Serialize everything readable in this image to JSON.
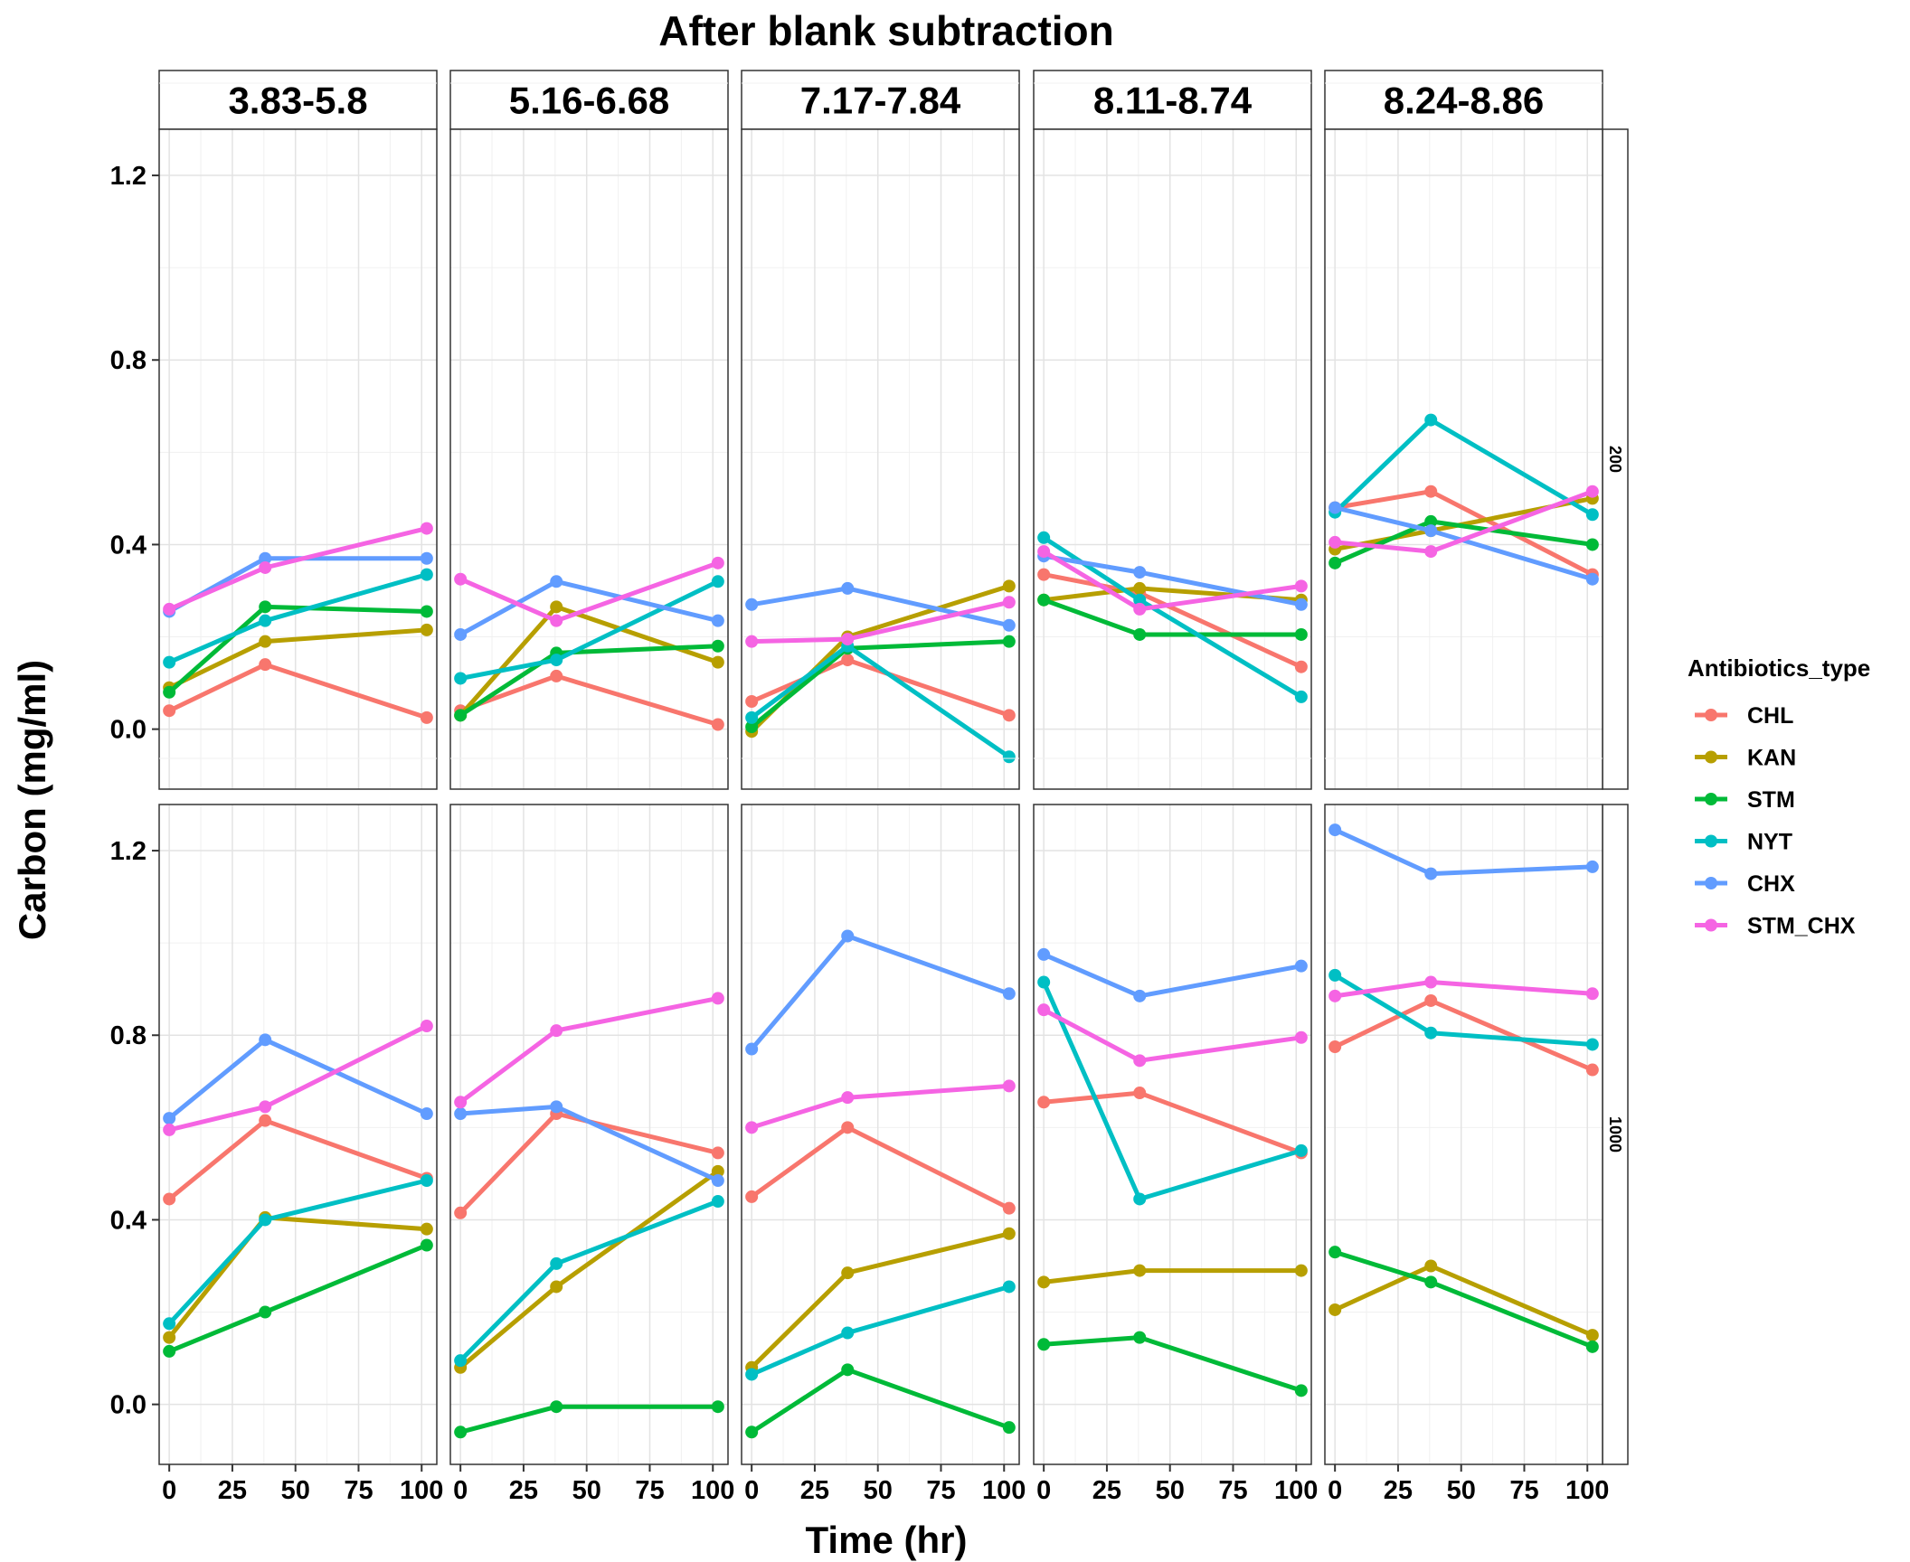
{
  "chart_data": {
    "type": "line",
    "title": "After blank subtraction",
    "xlabel": "Time (hr)",
    "ylabel": "Carbon (mg/ml)",
    "x": [
      0,
      38,
      102
    ],
    "x_ticks": [
      0,
      25,
      50,
      75,
      100
    ],
    "x_tick_labels": [
      "0",
      "25",
      "50",
      "75",
      "100"
    ],
    "xlim": [
      -4,
      106
    ],
    "ylim": [
      -0.13,
      1.3
    ],
    "y_ticks": [
      0.0,
      0.4,
      0.8,
      1.2
    ],
    "y_tick_labels": [
      "0.0",
      "0.4",
      "0.8",
      "1.2"
    ],
    "grid": true,
    "legend_title": "Antibiotics_type",
    "legend_position": "right",
    "series_names": [
      "CHL",
      "KAN",
      "STM",
      "NYT",
      "CHX",
      "STM_CHX"
    ],
    "colors": {
      "CHL": "#F8766D",
      "KAN": "#B79F00",
      "STM": "#00BA38",
      "NYT": "#00BFC4",
      "CHX": "#619CFF",
      "STM_CHX": "#F564E3"
    },
    "columns": [
      "3.83-5.8",
      "5.16-6.68",
      "7.17-7.84",
      "8.11-8.74",
      "8.24-8.86"
    ],
    "rows": [
      "200",
      "1000"
    ],
    "panels": [
      {
        "row": "200",
        "column": "3.83-5.8",
        "series": [
          {
            "name": "CHL",
            "values": [
              0.04,
              0.14,
              0.025
            ]
          },
          {
            "name": "KAN",
            "values": [
              0.09,
              0.19,
              0.215
            ]
          },
          {
            "name": "STM",
            "values": [
              0.08,
              0.265,
              0.255
            ]
          },
          {
            "name": "NYT",
            "values": [
              0.145,
              0.235,
              0.335
            ]
          },
          {
            "name": "CHX",
            "values": [
              0.255,
              0.37,
              0.37
            ]
          },
          {
            "name": "STM_CHX",
            "values": [
              0.26,
              0.35,
              0.435
            ]
          }
        ]
      },
      {
        "row": "200",
        "column": "5.16-6.68",
        "series": [
          {
            "name": "CHL",
            "values": [
              0.04,
              0.115,
              0.01
            ]
          },
          {
            "name": "KAN",
            "values": [
              0.03,
              0.265,
              0.145
            ]
          },
          {
            "name": "STM",
            "values": [
              0.03,
              0.165,
              0.18
            ]
          },
          {
            "name": "NYT",
            "values": [
              0.11,
              0.15,
              0.32
            ]
          },
          {
            "name": "CHX",
            "values": [
              0.205,
              0.32,
              0.235
            ]
          },
          {
            "name": "STM_CHX",
            "values": [
              0.325,
              0.235,
              0.36
            ]
          }
        ]
      },
      {
        "row": "200",
        "column": "7.17-7.84",
        "series": [
          {
            "name": "CHL",
            "values": [
              0.06,
              0.15,
              0.03
            ]
          },
          {
            "name": "KAN",
            "values": [
              -0.005,
              0.2,
              0.31
            ]
          },
          {
            "name": "STM",
            "values": [
              0.005,
              0.175,
              0.19
            ]
          },
          {
            "name": "NYT",
            "values": [
              0.025,
              0.18,
              -0.06
            ]
          },
          {
            "name": "CHX",
            "values": [
              0.27,
              0.305,
              0.225
            ]
          },
          {
            "name": "STM_CHX",
            "values": [
              0.19,
              0.195,
              0.275
            ]
          }
        ]
      },
      {
        "row": "200",
        "column": "8.11-8.74",
        "series": [
          {
            "name": "CHL",
            "values": [
              0.335,
              0.295,
              0.135
            ]
          },
          {
            "name": "KAN",
            "values": [
              0.28,
              0.305,
              0.28
            ]
          },
          {
            "name": "STM",
            "values": [
              0.28,
              0.205,
              0.205
            ]
          },
          {
            "name": "NYT",
            "values": [
              0.415,
              0.28,
              0.07
            ]
          },
          {
            "name": "CHX",
            "values": [
              0.375,
              0.34,
              0.27
            ]
          },
          {
            "name": "STM_CHX",
            "values": [
              0.385,
              0.26,
              0.31
            ]
          }
        ]
      },
      {
        "row": "200",
        "column": "8.24-8.86",
        "series": [
          {
            "name": "CHL",
            "values": [
              0.48,
              0.515,
              0.335
            ]
          },
          {
            "name": "KAN",
            "values": [
              0.39,
              0.43,
              0.5
            ]
          },
          {
            "name": "STM",
            "values": [
              0.36,
              0.45,
              0.4
            ]
          },
          {
            "name": "NYT",
            "values": [
              0.47,
              0.67,
              0.465
            ]
          },
          {
            "name": "CHX",
            "values": [
              0.48,
              0.43,
              0.325
            ]
          },
          {
            "name": "STM_CHX",
            "values": [
              0.405,
              0.385,
              0.515
            ]
          }
        ]
      },
      {
        "row": "1000",
        "column": "3.83-5.8",
        "series": [
          {
            "name": "CHL",
            "values": [
              0.445,
              0.615,
              0.49
            ]
          },
          {
            "name": "KAN",
            "values": [
              0.145,
              0.405,
              0.38
            ]
          },
          {
            "name": "STM",
            "values": [
              0.115,
              0.2,
              0.345
            ]
          },
          {
            "name": "NYT",
            "values": [
              0.175,
              0.4,
              0.485
            ]
          },
          {
            "name": "CHX",
            "values": [
              0.62,
              0.79,
              0.63
            ]
          },
          {
            "name": "STM_CHX",
            "values": [
              0.595,
              0.645,
              0.82
            ]
          }
        ]
      },
      {
        "row": "1000",
        "column": "5.16-6.68",
        "series": [
          {
            "name": "CHL",
            "values": [
              0.415,
              0.63,
              0.545
            ]
          },
          {
            "name": "KAN",
            "values": [
              0.08,
              0.255,
              0.505
            ]
          },
          {
            "name": "STM",
            "values": [
              -0.06,
              -0.005,
              -0.005
            ]
          },
          {
            "name": "NYT",
            "values": [
              0.095,
              0.305,
              0.44
            ]
          },
          {
            "name": "CHX",
            "values": [
              0.63,
              0.645,
              0.485
            ]
          },
          {
            "name": "STM_CHX",
            "values": [
              0.655,
              0.81,
              0.88
            ]
          }
        ]
      },
      {
        "row": "1000",
        "column": "7.17-7.84",
        "series": [
          {
            "name": "CHL",
            "values": [
              0.45,
              0.6,
              0.425
            ]
          },
          {
            "name": "KAN",
            "values": [
              0.08,
              0.285,
              0.37
            ]
          },
          {
            "name": "STM",
            "values": [
              -0.06,
              0.075,
              -0.05
            ]
          },
          {
            "name": "NYT",
            "values": [
              0.065,
              0.155,
              0.255
            ]
          },
          {
            "name": "CHX",
            "values": [
              0.77,
              1.015,
              0.89
            ]
          },
          {
            "name": "STM_CHX",
            "values": [
              0.6,
              0.665,
              0.69
            ]
          }
        ]
      },
      {
        "row": "1000",
        "column": "8.11-8.74",
        "series": [
          {
            "name": "CHL",
            "values": [
              0.655,
              0.675,
              0.545
            ]
          },
          {
            "name": "KAN",
            "values": [
              0.265,
              0.29,
              0.29
            ]
          },
          {
            "name": "STM",
            "values": [
              0.13,
              0.145,
              0.03
            ]
          },
          {
            "name": "NYT",
            "values": [
              0.915,
              0.445,
              0.55
            ]
          },
          {
            "name": "CHX",
            "values": [
              0.975,
              0.885,
              0.95
            ]
          },
          {
            "name": "STM_CHX",
            "values": [
              0.855,
              0.745,
              0.795
            ]
          }
        ]
      },
      {
        "row": "1000",
        "column": "8.24-8.86",
        "series": [
          {
            "name": "CHL",
            "values": [
              0.775,
              0.875,
              0.725
            ]
          },
          {
            "name": "KAN",
            "values": [
              0.205,
              0.3,
              0.15
            ]
          },
          {
            "name": "STM",
            "values": [
              0.33,
              0.265,
              0.125
            ]
          },
          {
            "name": "NYT",
            "values": [
              0.93,
              0.805,
              0.78
            ]
          },
          {
            "name": "CHX",
            "values": [
              1.245,
              1.15,
              1.165
            ]
          },
          {
            "name": "STM_CHX",
            "values": [
              0.885,
              0.915,
              0.89
            ]
          }
        ]
      }
    ]
  }
}
